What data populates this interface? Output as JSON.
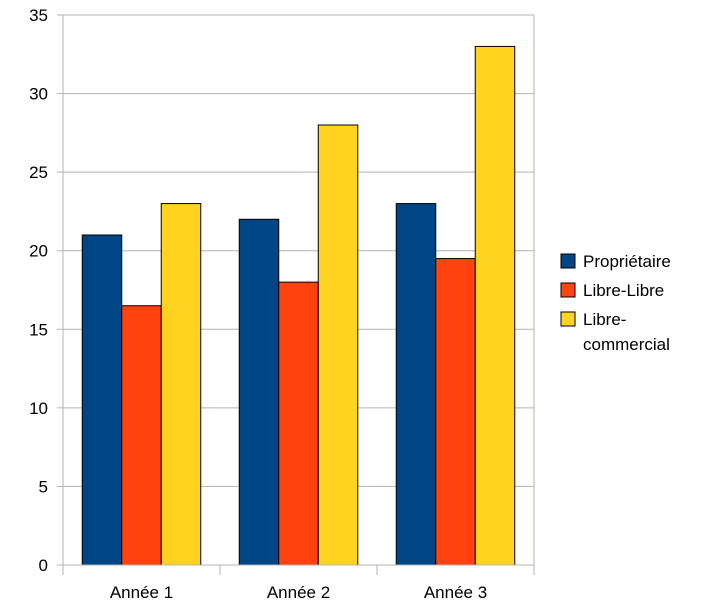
{
  "chart_data": {
    "type": "bar",
    "title": "",
    "xlabel": "",
    "ylabel": "",
    "categories": [
      "Année 1",
      "Année 2",
      "Année 3"
    ],
    "series": [
      {
        "name": "Propriétaire",
        "values": [
          21,
          22,
          23
        ],
        "color": "#004586"
      },
      {
        "name": "Libre-Libre",
        "values": [
          16.5,
          18,
          19.5
        ],
        "color": "#ff420e"
      },
      {
        "name": "Libre-commercial",
        "legend_lines": [
          "Libre-",
          "commercial"
        ],
        "values": [
          23,
          28,
          33
        ],
        "color": "#ffd320"
      }
    ],
    "ylim": [
      0,
      35
    ],
    "yticks": [
      "0",
      "5",
      "10",
      "15",
      "20",
      "25",
      "30",
      "35"
    ],
    "grid": true,
    "legend_position": "right"
  }
}
